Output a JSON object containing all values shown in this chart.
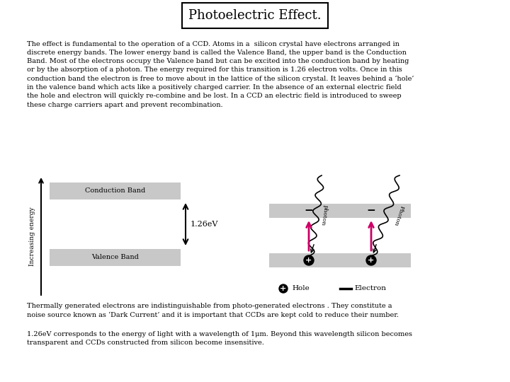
{
  "title": "Photoelectric Effect.",
  "bg_color": "#ffffff",
  "paragraph1": "The effect is fundamental to the operation of a CCD. Atoms in a  silicon crystal have electrons arranged in\ndiscrete energy bands. The lower energy band is called the Valence Band, the upper band is the Conduction\nBand. Most of the electrons occupy the Valence band but can be excited into the conduction band by heating\nor by the absorption of a photon. The energy required for this transition is 1.26 electron volts. Once in this\nconduction band the electron is free to move about in the lattice of the silicon crystal. It leaves behind a ‘hole’\nin the valence band which acts like a positively charged carrier. In the absence of an external electric field\nthe hole and electron will quickly re-combine and be lost. In a CCD an electric field is introduced to sweep\nthese charge carriers apart and prevent recombination.",
  "paragraph2": "Thermally generated electrons are indistinguishable from photo-generated electrons . They constitute a\nnoise source known as ‘Dark Current’ and it is important that CCDs are kept cold to reduce their number.",
  "paragraph3": "1.26eV corresponds to the energy of light with a wavelength of 1μm. Beyond this wavelength silicon becomes\ntransparent and CCDs constructed from silicon become insensitive.",
  "band_color": "#c8c8c8",
  "photon_arrow_color": "#cc0066",
  "conduction_label": "Conduction Band",
  "valence_label": "Valence Band",
  "energy_label": "Increasing energy",
  "gap_label": "1.26eV",
  "hole_label": "Hole",
  "electron_label": "Electron",
  "title_fontsize": 13,
  "para_fontsize": 7.0,
  "label_fontsize": 7.0
}
